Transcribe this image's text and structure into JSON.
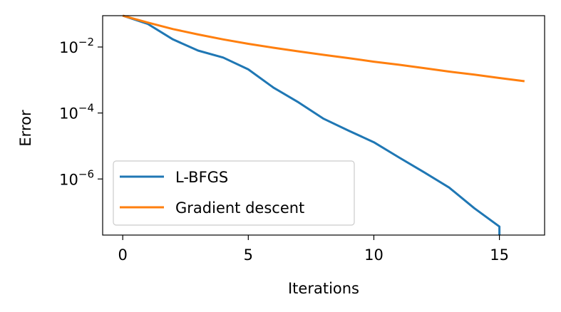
{
  "chart_data": {
    "type": "line",
    "xlabel": "Iterations",
    "ylabel": "Error",
    "xlim": [
      -0.8,
      16.8
    ],
    "ylim": [
      -7.7,
      -1.05
    ],
    "yscale": "log",
    "grid": false,
    "legend_position": "lower-left",
    "xticks": [
      {
        "value": 0,
        "label": "0"
      },
      {
        "value": 5,
        "label": "5"
      },
      {
        "value": 10,
        "label": "10"
      },
      {
        "value": 15,
        "label": "15"
      }
    ],
    "yticks": [
      {
        "value": 0.01,
        "base": "10",
        "exp": "−2"
      },
      {
        "value": 0.0001,
        "base": "10",
        "exp": "−4"
      },
      {
        "value": 1e-06,
        "base": "10",
        "exp": "−6"
      }
    ],
    "series": [
      {
        "name": "L-BFGS",
        "color": "#1f77b4",
        "x": [
          0,
          1,
          2,
          3,
          4,
          5,
          6,
          7,
          8,
          9,
          10,
          11,
          12,
          13,
          14,
          15,
          15
        ],
        "y": [
          0.1,
          0.05,
          0.017,
          0.0078,
          0.0048,
          0.0021,
          0.00059,
          0.00021,
          6.7e-05,
          2.9e-05,
          1.3e-05,
          4.5e-06,
          1.6e-06,
          5.5e-07,
          1.3e-07,
          3.6e-08,
          1.9e-08
        ]
      },
      {
        "name": "Gradient descent",
        "color": "#ff7f0e",
        "x": [
          0,
          1,
          2,
          3,
          4,
          5,
          6,
          7,
          8,
          9,
          10,
          11,
          12,
          13,
          14,
          15,
          16
        ],
        "y": [
          0.1,
          0.055,
          0.035,
          0.024,
          0.017,
          0.0125,
          0.0095,
          0.0074,
          0.0058,
          0.0046,
          0.0036,
          0.0029,
          0.0023,
          0.0018,
          0.00145,
          0.00115,
          0.00092
        ]
      }
    ]
  }
}
